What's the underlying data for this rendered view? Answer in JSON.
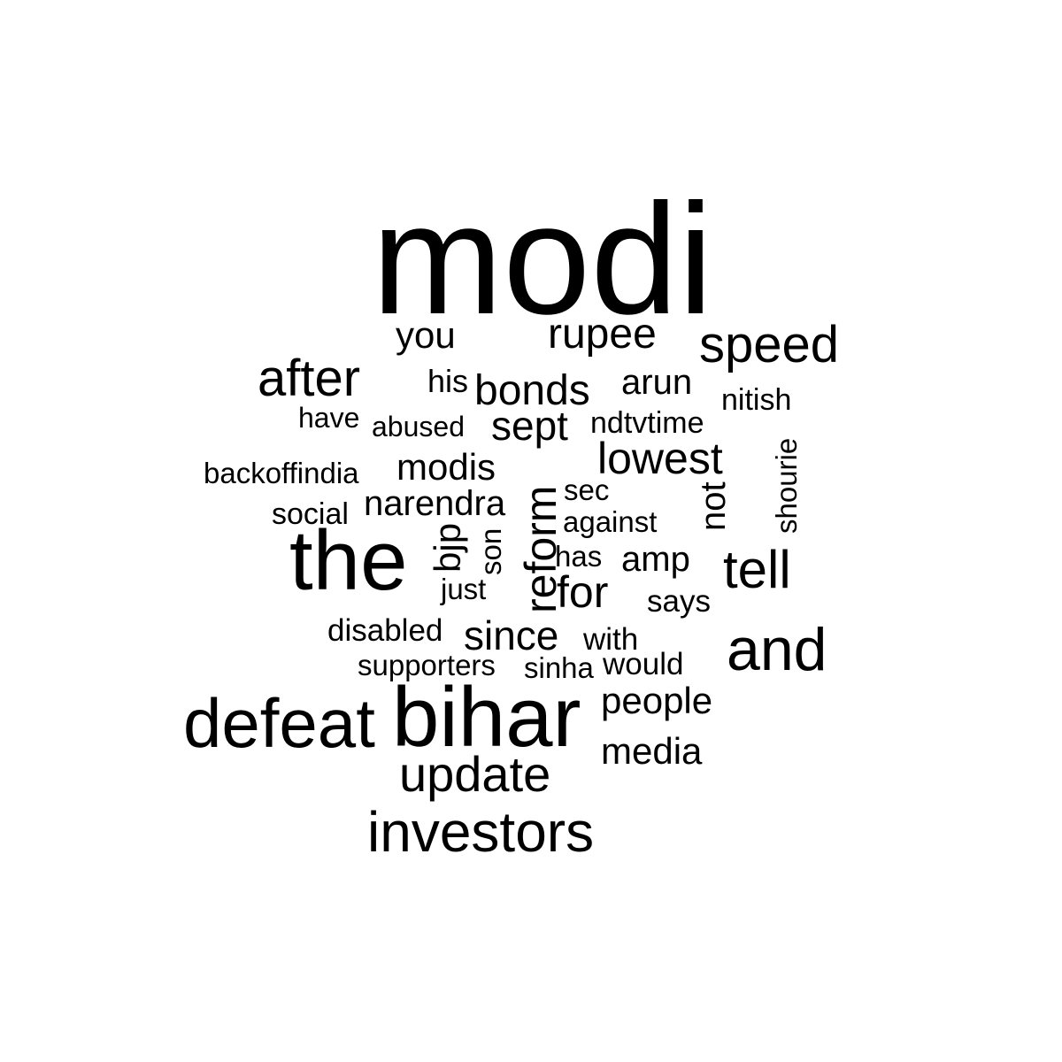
{
  "words": {
    "modi": "modi",
    "the": "the",
    "bihar": "bihar",
    "defeat": "defeat",
    "investors": "investors",
    "update": "update",
    "after": "after",
    "speed": "speed",
    "and": "and",
    "reform": "reform",
    "tell": "tell",
    "bonds": "bonds",
    "rupee": "rupee",
    "lowest": "lowest",
    "for": "for",
    "since": "since",
    "you": "you",
    "sept": "sept",
    "people": "people",
    "media": "media",
    "modis": "modis",
    "narendra": "narendra",
    "arun": "arun",
    "amp": "amp",
    "not": "not",
    "bjp": "bjp",
    "his": "his",
    "have": "have",
    "abused": "abused",
    "ndtvtime": "ndtvtime",
    "nitish": "nitish",
    "backoffindia": "backoffindia",
    "social": "social",
    "sec": "sec",
    "against": "against",
    "shourie": "shourie",
    "son": "son",
    "has": "has",
    "just": "just",
    "says": "says",
    "disabled": "disabled",
    "with": "with",
    "supporters": "supporters",
    "sinha": "sinha",
    "would": "would"
  }
}
